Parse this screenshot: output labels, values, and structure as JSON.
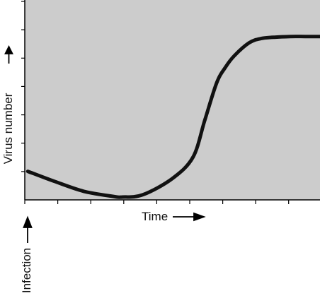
{
  "colors": {
    "plot_background": "#cccccc",
    "curve": "#111111",
    "axis": "#000000",
    "page_background": "#ffffff"
  },
  "chart_data": {
    "type": "line",
    "title": "",
    "xlabel": "Time",
    "ylabel": "Virus number",
    "annotations": [
      {
        "text": "Infection",
        "x": 0,
        "direction": "up"
      }
    ],
    "xlim": [
      0,
      10
    ],
    "ylim": [
      0,
      7
    ],
    "grid": false,
    "legend": "none",
    "x_tick_count": 9,
    "y_tick_count": 7,
    "x_tick_labels_shown": false,
    "y_tick_labels_shown": false,
    "series": [
      {
        "x": [
          0.1,
          1.0,
          2.0,
          3.0,
          3.3,
          4.0,
          5.0,
          5.7,
          6.1,
          6.5,
          6.8,
          7.1,
          7.6,
          8.0,
          8.5,
          9.0,
          9.5,
          10.0
        ],
        "values": [
          1.0,
          0.65,
          0.3,
          0.12,
          0.1,
          0.18,
          0.75,
          1.5,
          2.8,
          4.1,
          4.65,
          5.05,
          5.5,
          5.65,
          5.7,
          5.72,
          5.72,
          5.72
        ]
      }
    ]
  }
}
